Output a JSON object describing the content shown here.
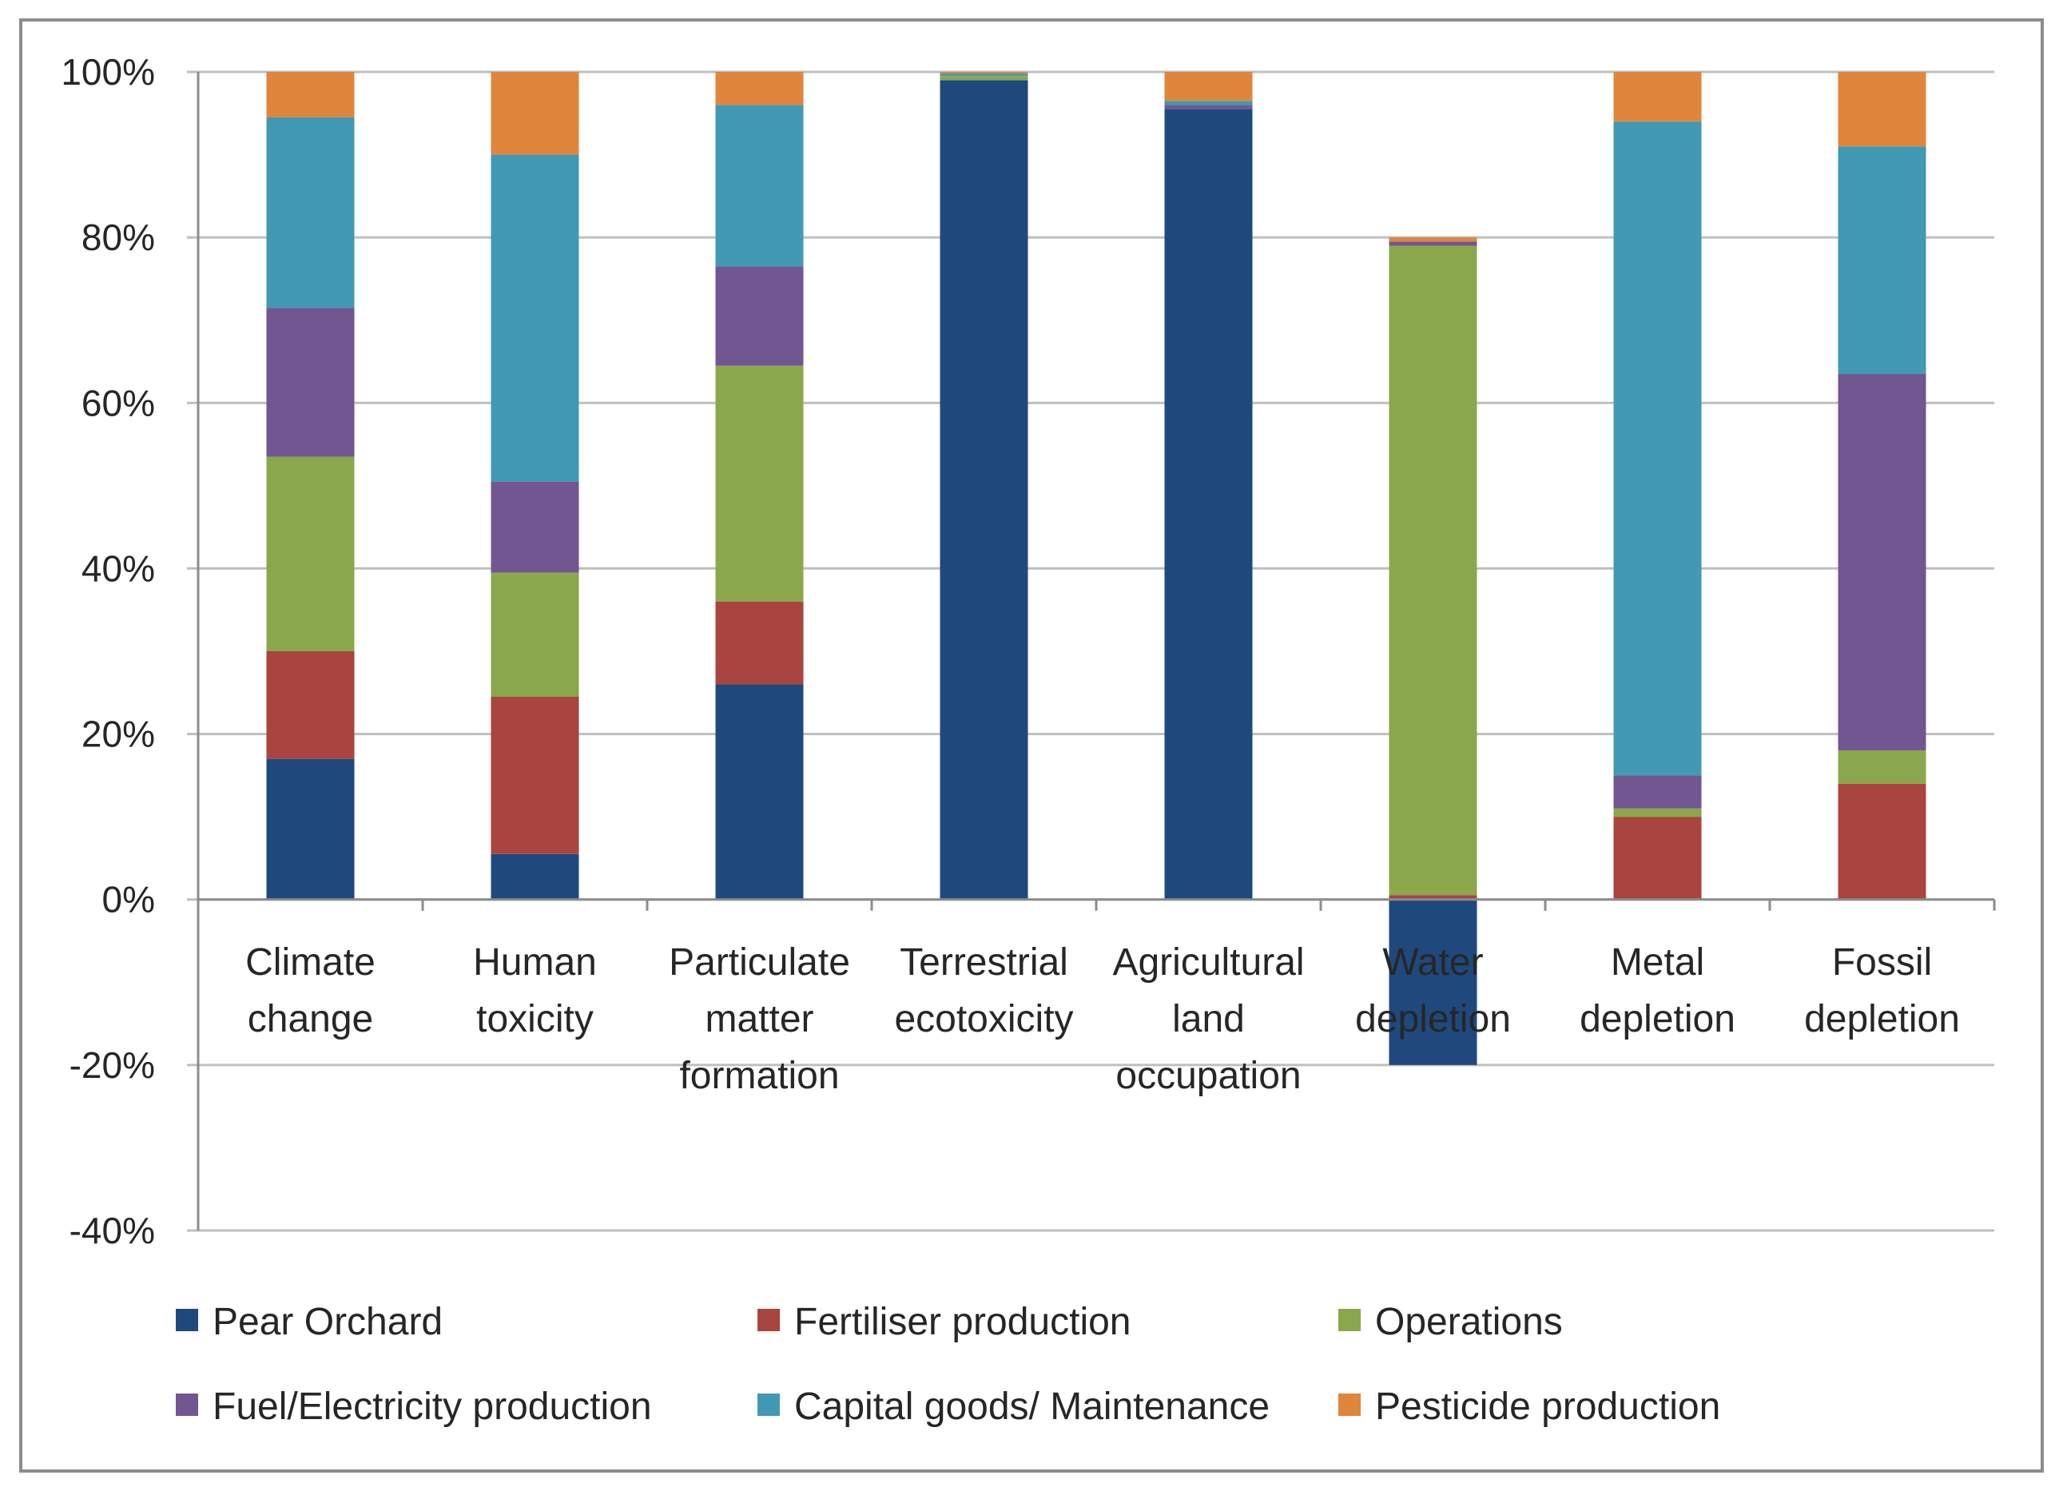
{
  "chart_data": {
    "type": "bar",
    "stacked": true,
    "percent_axis": true,
    "title": "",
    "xlabel": "",
    "ylabel": "",
    "ylim": [
      -40,
      100
    ],
    "yticks": [
      100,
      80,
      60,
      40,
      20,
      0,
      -20,
      -40
    ],
    "ytick_labels": [
      "100%",
      "80%",
      "60%",
      "40%",
      "20%",
      "0%",
      "-20%",
      "-40%"
    ],
    "grid": true,
    "legend_position": "bottom",
    "categories": [
      {
        "lines": [
          "Climate",
          "change"
        ]
      },
      {
        "lines": [
          "Human",
          "toxicity"
        ]
      },
      {
        "lines": [
          "Particulate",
          "matter",
          "formation"
        ]
      },
      {
        "lines": [
          "Terrestrial",
          "ecotoxicity"
        ]
      },
      {
        "lines": [
          "Agricultural",
          "land",
          "occupation"
        ]
      },
      {
        "lines": [
          "Water",
          "depletion"
        ]
      },
      {
        "lines": [
          "Metal",
          "depletion"
        ]
      },
      {
        "lines": [
          "Fossil",
          "depletion"
        ]
      }
    ],
    "series": [
      {
        "name": "Pear Orchard",
        "color": "#1f497d",
        "values": [
          17,
          5.5,
          26,
          99,
          95.5,
          -20,
          0,
          0
        ]
      },
      {
        "name": "Fertiliser production",
        "color": "#a9443f",
        "values": [
          13,
          19,
          10,
          0,
          0,
          0.5,
          10,
          14
        ]
      },
      {
        "name": "Operations",
        "color": "#8aa84b",
        "values": [
          23.5,
          15,
          28.5,
          0.5,
          0,
          78.5,
          1,
          4
        ]
      },
      {
        "name": "Fuel/Electricity production",
        "color": "#715692",
        "values": [
          18,
          11,
          12,
          0,
          0.5,
          0.5,
          4,
          45.5
        ]
      },
      {
        "name": "Capital goods/ Maintenance",
        "color": "#4199b3",
        "values": [
          23,
          39.5,
          19.5,
          0.3,
          0.5,
          0,
          79,
          27.5
        ]
      },
      {
        "name": "Pesticide production",
        "color": "#e0853c",
        "values": [
          5.5,
          10,
          4,
          0.2,
          3.5,
          0.5,
          6,
          9
        ]
      }
    ],
    "legend_rows": [
      [
        0,
        1,
        2
      ],
      [
        3,
        4,
        5
      ]
    ]
  }
}
